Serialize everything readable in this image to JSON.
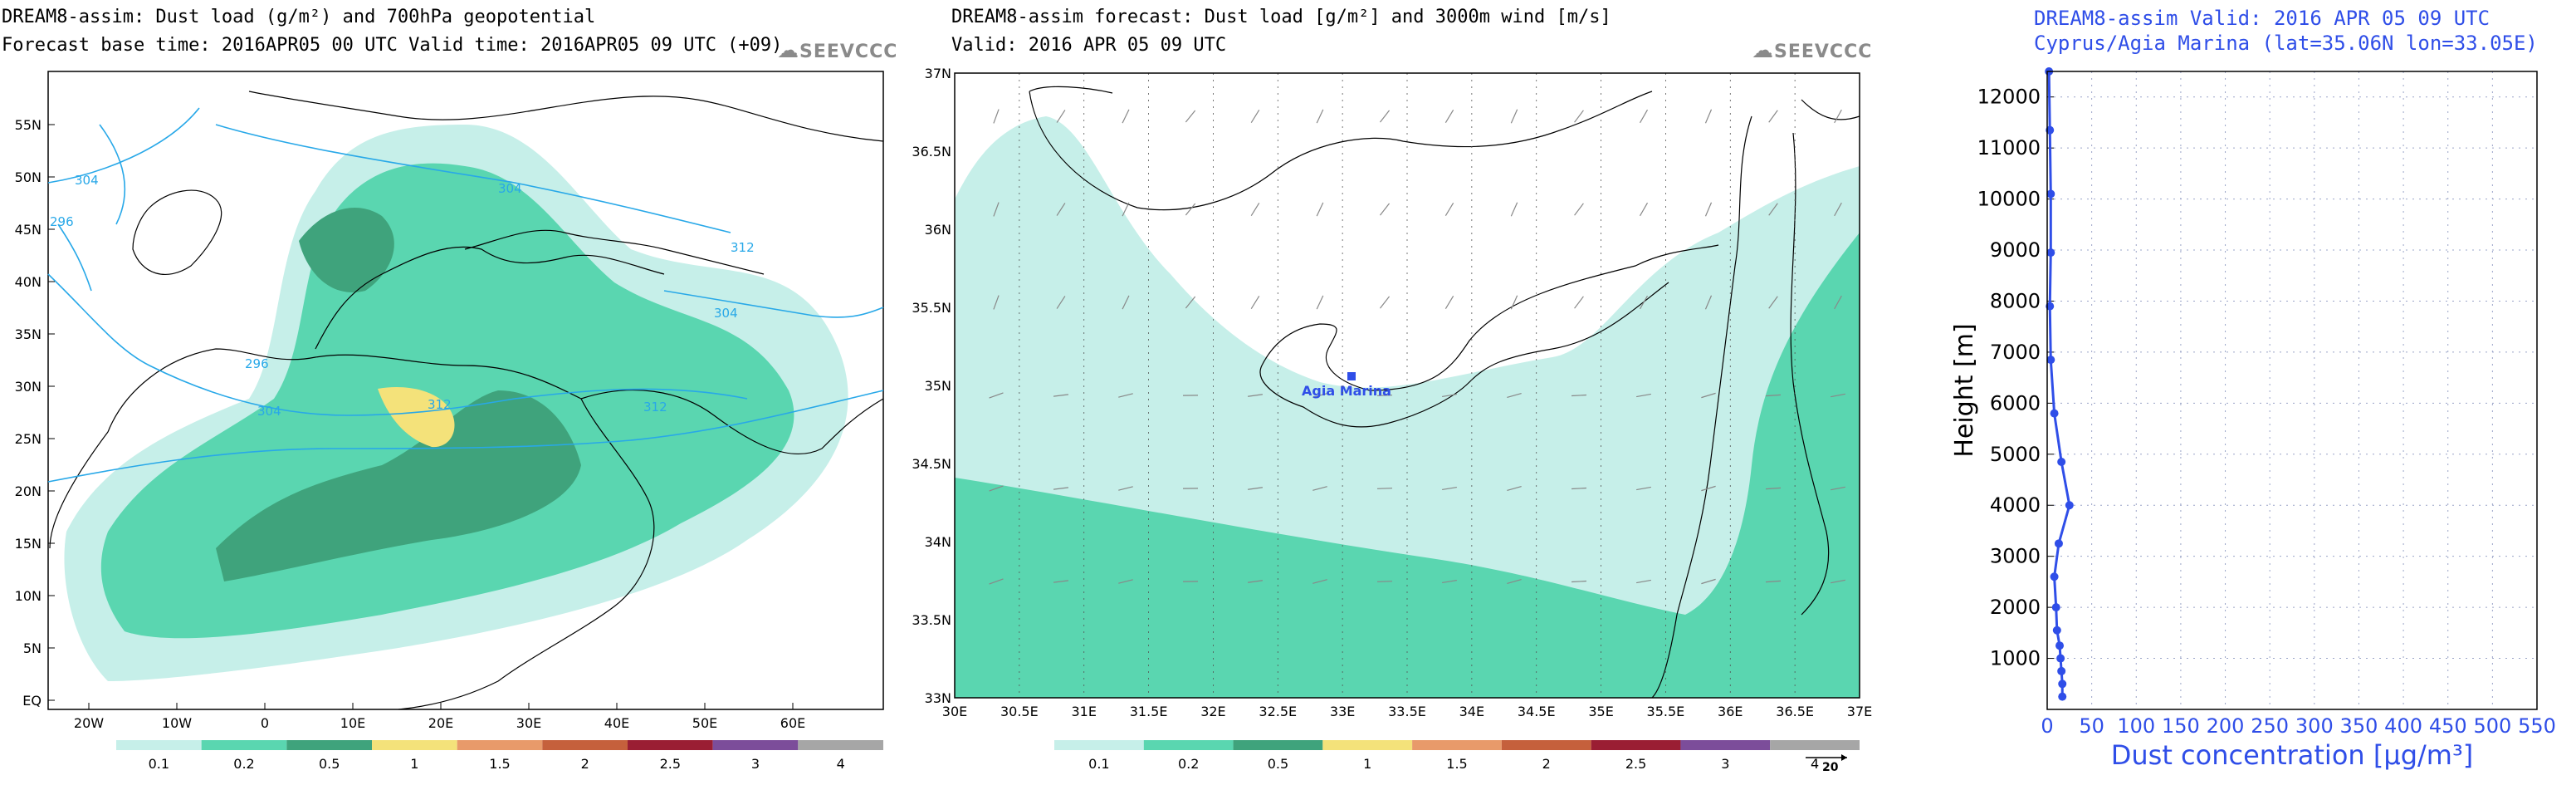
{
  "panel1": {
    "title_line1": "DREAM8-assim: Dust load (g/m²) and 700hPa geopotential",
    "title_line2": "Forecast base time: 2016APR05 00 UTC  Valid time: 2016APR05 09 UTC  (+09)",
    "logo": "SEEVCCC",
    "lat_labels": [
      "55N",
      "50N",
      "45N",
      "40N",
      "35N",
      "30N",
      "25N",
      "20N",
      "15N",
      "10N",
      "5N",
      "EQ"
    ],
    "lon_labels": [
      "20W",
      "10W",
      "0",
      "10E",
      "20E",
      "30E",
      "40E",
      "50E",
      "60E"
    ],
    "contour_labels": [
      "304",
      "312",
      "304",
      "296",
      "296",
      "304",
      "304",
      "312",
      "312",
      "312"
    ],
    "colorbar_labels": [
      "0.1",
      "0.2",
      "0.5",
      "1",
      "1.5",
      "2",
      "2.5",
      "3",
      "4"
    ]
  },
  "panel2": {
    "title_line1": "DREAM8-assim forecast: Dust load [g/m²] and 3000m wind [m/s]",
    "title_line2": "Valid: 2016 APR 05  09 UTC",
    "logo": "SEEVCCC",
    "station_label": "Agia Marina",
    "lat_labels": [
      "37N",
      "36.5N",
      "36N",
      "35.5N",
      "35N",
      "34.5N",
      "34N",
      "33.5N",
      "33N"
    ],
    "lon_labels": [
      "30E",
      "30.5E",
      "31E",
      "31.5E",
      "32E",
      "32.5E",
      "33E",
      "33.5E",
      "34E",
      "34.5E",
      "35E",
      "35.5E",
      "36E",
      "36.5E",
      "37E"
    ],
    "colorbar_labels": [
      "0.1",
      "0.2",
      "0.5",
      "1",
      "1.5",
      "2",
      "2.5",
      "3",
      "4"
    ],
    "wind_ref_label": "20"
  },
  "chart_data": {
    "type": "line",
    "title": "DREAM8-assim   Valid: 2016 APR 05   09 UTC",
    "subtitle": "Cyprus/Agia Marina (lat=35.06N lon=33.05E)",
    "xlabel": "Dust concentration [μg/m³]",
    "ylabel": "Height [m]",
    "xlim": [
      0,
      550
    ],
    "ylim": [
      0,
      12500
    ],
    "x_ticks": [
      0,
      50,
      100,
      150,
      200,
      250,
      300,
      350,
      400,
      450,
      500,
      550
    ],
    "y_ticks": [
      1000,
      2000,
      3000,
      4000,
      5000,
      6000,
      7000,
      8000,
      9000,
      10000,
      11000,
      12000
    ],
    "grid": true,
    "series": [
      {
        "x": [
          17,
          17,
          16,
          15,
          14,
          11,
          10,
          8,
          13,
          25,
          16,
          8,
          4,
          3,
          4,
          4,
          3,
          2
        ],
        "y": [
          250,
          500,
          750,
          1000,
          1250,
          1550,
          2000,
          2600,
          3250,
          4000,
          4850,
          5800,
          6850,
          7900,
          8950,
          10100,
          11350,
          12500
        ]
      }
    ],
    "color": "#2f4ee8"
  }
}
